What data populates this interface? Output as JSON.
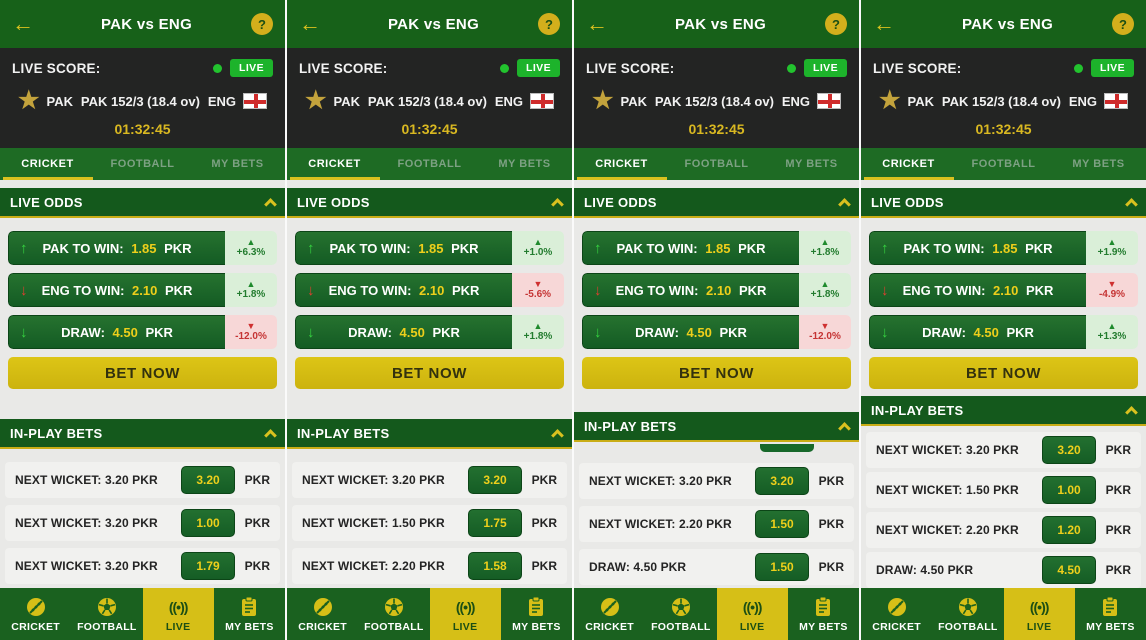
{
  "colors": {
    "brand_green": "#176119",
    "section_green": "#14591c",
    "accent_gold": "#d6bf17",
    "live_badge_green": "#1db32b",
    "badge_up_bg": "#daefd8",
    "badge_up_text": "#237c2f",
    "badge_down_bg": "#f7d7d7",
    "badge_down_text": "#c53434",
    "odds_value_yellow": "#eecf1b",
    "score_bg": "#232423"
  },
  "icons": {
    "back": "←",
    "help": "?",
    "live_dot": "●",
    "star": "★",
    "trend_up": "↑",
    "trend_down": "↓",
    "delta_up": "▲",
    "delta_down": "▼",
    "live_broadcast": "((•))"
  },
  "shared": {
    "title": "PAK vs ENG",
    "help": "?",
    "back": "←",
    "unit": "PKR",
    "score": {
      "label": "LIVE SCORE:",
      "live_badge": "LIVE",
      "home": "PAK",
      "score_line": "PAK 152/3 (18.4 ov)",
      "away": "ENG",
      "timer": "01:32:45"
    },
    "tabs": {
      "cricket": "CRICKET",
      "football": "FOOTBALL",
      "my_bets": "MY BETS"
    },
    "sections": {
      "live_odds": "LIVE ODDS",
      "in_play": "IN-PLAY BETS",
      "bet_now": "BET NOW"
    },
    "nav": {
      "cricket": "CRICKET",
      "football": "FOOTBALL",
      "live": "LIVE",
      "my_bets": "MY BETS"
    },
    "live_glyph": "((•))"
  },
  "panels": [
    {
      "odds": [
        {
          "label": "PAK TO WIN:",
          "value": "1.85",
          "trend": "up-green",
          "change": "+6.3%",
          "dir": "up"
        },
        {
          "label": "ENG TO WIN:",
          "value": "2.10",
          "trend": "down-red",
          "change": "+1.8%",
          "dir": "up"
        },
        {
          "label": "DRAW:",
          "value": "4.50",
          "trend": "down-green",
          "change": "-12.0%",
          "dir": "down"
        }
      ],
      "inplay": [
        {
          "label": "NEXT WICKET: 3.20 PKR",
          "value": "3.20"
        },
        {
          "label": "NEXT WICKET: 3.20 PKR",
          "value": "1.00"
        },
        {
          "label": "NEXT WICKET: 3.20 PKR",
          "value": "1.79"
        }
      ]
    },
    {
      "odds": [
        {
          "label": "PAK TO WIN:",
          "value": "1.85",
          "trend": "up-green",
          "change": "+1.0%",
          "dir": "up"
        },
        {
          "label": "ENG TO WIN:",
          "value": "2.10",
          "trend": "down-red",
          "change": "-5.6%",
          "dir": "down"
        },
        {
          "label": "DRAW:",
          "value": "4.50",
          "trend": "down-green",
          "change": "+1.8%",
          "dir": "up"
        }
      ],
      "inplay": [
        {
          "label": "NEXT WICKET: 3.20 PKR",
          "value": "3.20"
        },
        {
          "label": "NEXT WICKET: 1.50 PKR",
          "value": "1.75"
        },
        {
          "label": "NEXT WICKET: 2.20 PKR",
          "value": "1.58"
        }
      ]
    },
    {
      "odds": [
        {
          "label": "PAK TO WIN:",
          "value": "1.85",
          "trend": "up-green",
          "change": "+1.8%",
          "dir": "up"
        },
        {
          "label": "ENG TO WIN:",
          "value": "2.10",
          "trend": "down-red",
          "change": "+1.8%",
          "dir": "up"
        },
        {
          "label": "DRAW:",
          "value": "4.50",
          "trend": "down-green",
          "change": "-12.0%",
          "dir": "down"
        }
      ],
      "inplay": [
        {
          "label": "NEXT WICKET: 3.20 PKR",
          "value": "3.20"
        },
        {
          "label": "NEXT WICKET: 2.20 PKR",
          "value": "1.50"
        },
        {
          "label": "DRAW: 4.50 PKR",
          "value": "1.50"
        }
      ]
    },
    {
      "odds": [
        {
          "label": "PAK TO WIN:",
          "value": "1.85",
          "trend": "up-green",
          "change": "+1.9%",
          "dir": "up"
        },
        {
          "label": "ENG TO WIN:",
          "value": "2.10",
          "trend": "down-red",
          "change": "-4.9%",
          "dir": "down"
        },
        {
          "label": "DRAW:",
          "value": "4.50",
          "trend": "down-green",
          "change": "+1.3%",
          "dir": "up"
        }
      ],
      "inplay": [
        {
          "label": "NEXT WICKET: 3.20 PKR",
          "value": "3.20"
        },
        {
          "label": "NEXT WICKET: 1.50 PKR",
          "value": "1.00"
        },
        {
          "label": "NEXT WICKET: 2.20 PKR",
          "value": "1.20"
        },
        {
          "label": "DRAW: 4.50 PKR",
          "value": "4.50"
        }
      ]
    }
  ]
}
